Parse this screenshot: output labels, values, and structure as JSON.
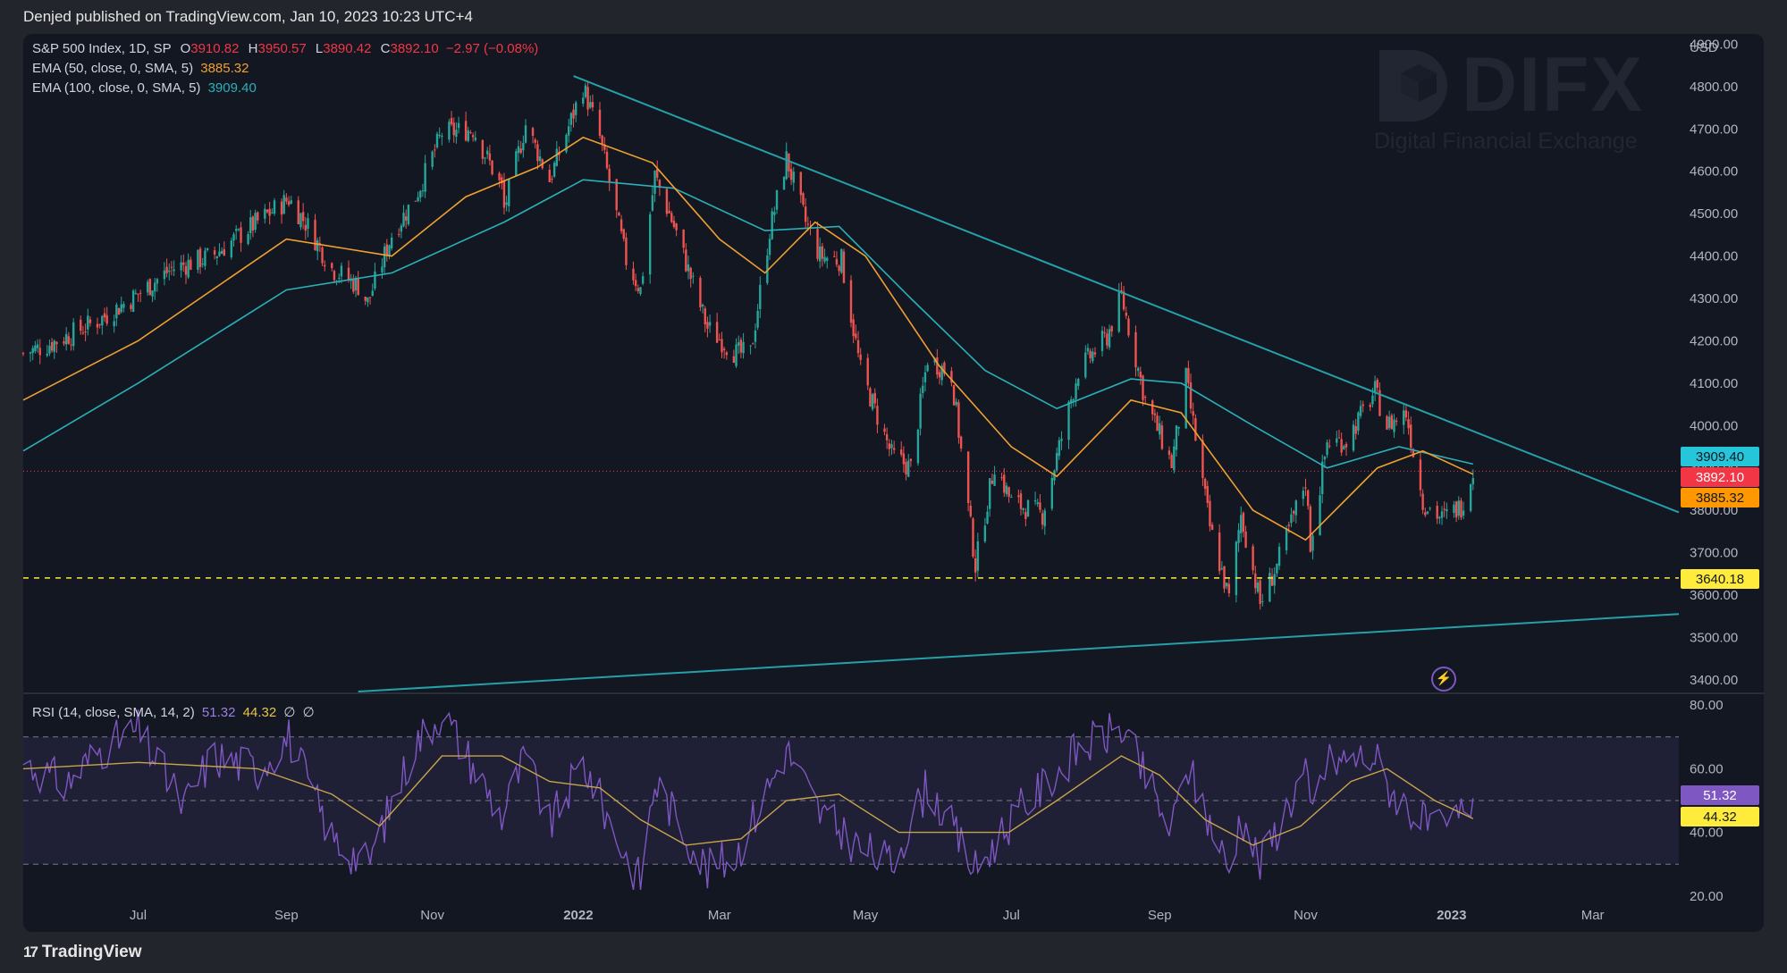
{
  "publisher": "Denjed published on TradingView.com, Jan 10, 2023 10:23 UTC+4",
  "footer": {
    "brand": "TradingView",
    "logo_mark": "17"
  },
  "watermark": {
    "name": "DIFX",
    "subtitle": "Digital Financial Exchange"
  },
  "legend": {
    "symbol": "S&P 500 Index, 1D, SP",
    "ohlc": [
      {
        "label": "O",
        "value": "3910.82"
      },
      {
        "label": "H",
        "value": "3950.57"
      },
      {
        "label": "L",
        "value": "3890.42"
      },
      {
        "label": "C",
        "value": "3892.10"
      }
    ],
    "change": "−2.97 (−0.08%)",
    "ema50": {
      "label": "EMA (50, close, 0, SMA, 5)",
      "value": "3885.32"
    },
    "ema100": {
      "label": "EMA (100, close, 0, SMA, 5)",
      "value": "3909.40"
    },
    "rsi": {
      "label": "RSI (14, close, SMA, 14, 2)",
      "value": "51.32",
      "ma_value": "44.32",
      "flags": [
        "∅",
        "∅"
      ]
    }
  },
  "colors": {
    "up": "#26a69a",
    "down": "#ef5350",
    "ema50": "#f0a030",
    "ema100": "#2ab0b8",
    "trendline": "#26a0a8",
    "support": "#ffeb3b",
    "rsi": "#7e57c2",
    "rsi_ma": "#c7a54b",
    "badge_ema100": "#26c6da",
    "badge_close": "#f23645",
    "badge_ema50": "#ff9800",
    "badge_support": "#ffeb3b"
  },
  "icons": {
    "lightning": "⚡"
  },
  "chart_data": {
    "type": "candlestick",
    "price_axis": {
      "unit": "USD",
      "ticks": [
        "4900.00",
        "4800.00",
        "4700.00",
        "4600.00",
        "4500.00",
        "4400.00",
        "4300.00",
        "4200.00",
        "4100.00",
        "4000.00",
        "3900.00",
        "3800.00",
        "3700.00",
        "3600.00",
        "3500.00",
        "3400.00"
      ],
      "ylim": [
        3370,
        4920
      ]
    },
    "time_axis": {
      "ticks": [
        {
          "label": "Jul",
          "bold": false
        },
        {
          "label": "Sep",
          "bold": false
        },
        {
          "label": "Nov",
          "bold": false
        },
        {
          "label": "2022",
          "bold": true
        },
        {
          "label": "Mar",
          "bold": false
        },
        {
          "label": "May",
          "bold": false
        },
        {
          "label": "Jul",
          "bold": false
        },
        {
          "label": "Sep",
          "bold": false
        },
        {
          "label": "Nov",
          "bold": false
        },
        {
          "label": "2023",
          "bold": true
        },
        {
          "label": "Mar",
          "bold": false
        }
      ],
      "tick_dates": [
        "2021-07-01",
        "2021-09-01",
        "2021-11-01",
        "2022-01-01",
        "2022-03-01",
        "2022-05-01",
        "2022-07-01",
        "2022-09-01",
        "2022-11-01",
        "2023-01-01",
        "2023-03-01"
      ],
      "range": [
        "2021-05-14",
        "2023-04-06"
      ]
    },
    "price_path": [
      [
        "2021-05-14",
        4170
      ],
      [
        "2021-05-24",
        4190
      ],
      [
        "2021-06-01",
        4210
      ],
      [
        "2021-06-15",
        4250
      ],
      [
        "2021-07-01",
        4310
      ],
      [
        "2021-07-15",
        4370
      ],
      [
        "2021-08-01",
        4400
      ],
      [
        "2021-08-15",
        4460
      ],
      [
        "2021-09-02",
        4535
      ],
      [
        "2021-09-10",
        4470
      ],
      [
        "2021-09-20",
        4370
      ],
      [
        "2021-10-01",
        4330
      ],
      [
        "2021-10-05",
        4290
      ],
      [
        "2021-10-15",
        4450
      ],
      [
        "2021-10-25",
        4540
      ],
      [
        "2021-11-05",
        4690
      ],
      [
        "2021-11-18",
        4700
      ],
      [
        "2021-11-30",
        4560
      ],
      [
        "2021-12-01",
        4510
      ],
      [
        "2021-12-10",
        4710
      ],
      [
        "2021-12-20",
        4580
      ],
      [
        "2022-01-03",
        4800
      ],
      [
        "2022-01-10",
        4680
      ],
      [
        "2022-01-21",
        4390
      ],
      [
        "2022-01-27",
        4320
      ],
      [
        "2022-02-02",
        4590
      ],
      [
        "2022-02-10",
        4470
      ],
      [
        "2022-02-24",
        4230
      ],
      [
        "2022-03-08",
        4170
      ],
      [
        "2022-03-14",
        4170
      ],
      [
        "2022-03-22",
        4460
      ],
      [
        "2022-03-29",
        4630
      ],
      [
        "2022-04-06",
        4480
      ],
      [
        "2022-04-12",
        4400
      ],
      [
        "2022-04-21",
        4390
      ],
      [
        "2022-04-29",
        4130
      ],
      [
        "2022-05-12",
        3930
      ],
      [
        "2022-05-20",
        3900
      ],
      [
        "2022-05-27",
        4160
      ],
      [
        "2022-06-06",
        4120
      ],
      [
        "2022-06-16",
        3670
      ],
      [
        "2022-06-24",
        3910
      ],
      [
        "2022-07-01",
        3820
      ],
      [
        "2022-07-14",
        3790
      ],
      [
        "2022-07-29",
        4130
      ],
      [
        "2022-08-10",
        4210
      ],
      [
        "2022-08-16",
        4305
      ],
      [
        "2022-08-26",
        4060
      ],
      [
        "2022-09-06",
        3910
      ],
      [
        "2022-09-12",
        4110
      ],
      [
        "2022-09-22",
        3760
      ],
      [
        "2022-09-30",
        3590
      ],
      [
        "2022-10-05",
        3790
      ],
      [
        "2022-10-13",
        3580
      ],
      [
        "2022-10-20",
        3670
      ],
      [
        "2022-11-01",
        3870
      ],
      [
        "2022-11-03",
        3720
      ],
      [
        "2022-11-10",
        3960
      ],
      [
        "2022-11-18",
        3965
      ],
      [
        "2022-11-30",
        4080
      ],
      [
        "2022-12-05",
        4000
      ],
      [
        "2022-12-13",
        4030
      ],
      [
        "2022-12-20",
        3820
      ],
      [
        "2022-12-28",
        3780
      ],
      [
        "2023-01-05",
        3810
      ],
      [
        "2023-01-10",
        3892
      ]
    ],
    "ema50_path": [
      [
        "2021-05-14",
        4060
      ],
      [
        "2021-07-01",
        4200
      ],
      [
        "2021-09-01",
        4440
      ],
      [
        "2021-10-15",
        4400
      ],
      [
        "2021-11-15",
        4540
      ],
      [
        "2021-12-15",
        4610
      ],
      [
        "2022-01-03",
        4680
      ],
      [
        "2022-02-01",
        4620
      ],
      [
        "2022-03-01",
        4440
      ],
      [
        "2022-03-20",
        4360
      ],
      [
        "2022-04-10",
        4480
      ],
      [
        "2022-05-01",
        4400
      ],
      [
        "2022-06-01",
        4140
      ],
      [
        "2022-07-01",
        3950
      ],
      [
        "2022-07-20",
        3880
      ],
      [
        "2022-08-20",
        4060
      ],
      [
        "2022-09-10",
        4030
      ],
      [
        "2022-10-10",
        3800
      ],
      [
        "2022-11-01",
        3730
      ],
      [
        "2022-12-01",
        3900
      ],
      [
        "2022-12-20",
        3940
      ],
      [
        "2023-01-10",
        3885
      ]
    ],
    "ema100_path": [
      [
        "2021-05-14",
        3940
      ],
      [
        "2021-07-01",
        4100
      ],
      [
        "2021-09-01",
        4320
      ],
      [
        "2021-10-15",
        4360
      ],
      [
        "2021-12-01",
        4480
      ],
      [
        "2022-01-03",
        4580
      ],
      [
        "2022-02-10",
        4560
      ],
      [
        "2022-03-20",
        4460
      ],
      [
        "2022-04-20",
        4470
      ],
      [
        "2022-05-20",
        4300
      ],
      [
        "2022-06-20",
        4130
      ],
      [
        "2022-07-20",
        4040
      ],
      [
        "2022-08-20",
        4110
      ],
      [
        "2022-09-10",
        4100
      ],
      [
        "2022-10-10",
        4000
      ],
      [
        "2022-11-10",
        3900
      ],
      [
        "2022-12-10",
        3950
      ],
      [
        "2023-01-10",
        3909
      ]
    ],
    "trendlines": [
      {
        "name": "descending resistance",
        "from": [
          "2021-12-30",
          4825
        ],
        "to": [
          "2023-04-06",
          3795
        ]
      },
      {
        "name": "ascending support",
        "from": [
          "2021-10-01",
          3372
        ],
        "to": [
          "2023-04-06",
          3555
        ]
      }
    ],
    "horizontal_levels": [
      {
        "value": 3640.18,
        "label": "3640.18",
        "style": "dashed"
      },
      {
        "value": 3892.1,
        "label": "3892.10",
        "style": "dotted"
      }
    ],
    "price_badges": [
      {
        "label": "3909.40",
        "value": 3909.4
      },
      {
        "label": "3892.10",
        "value": 3892.1
      },
      {
        "label": "3885.32",
        "value": 3885.32
      },
      {
        "label": "3640.18",
        "value": 3640.18
      }
    ],
    "rsi": {
      "ticks": [
        "80.00",
        "60.00",
        "40.00",
        "20.00"
      ],
      "ylim": [
        18,
        82
      ],
      "bands": [
        70,
        50,
        30
      ],
      "badges": [
        {
          "label": "51.32",
          "value": 51.32
        },
        {
          "label": "44.32",
          "value": 44.32
        }
      ],
      "rsi_path": [
        [
          "2021-05-14",
          62
        ],
        [
          "2021-06-01",
          55
        ],
        [
          "2021-06-15",
          66
        ],
        [
          "2021-07-01",
          72
        ],
        [
          "2021-07-20",
          48
        ],
        [
          "2021-08-01",
          64
        ],
        [
          "2021-08-20",
          60
        ],
        [
          "2021-09-02",
          70
        ],
        [
          "2021-09-20",
          38
        ],
        [
          "2021-10-05",
          30
        ],
        [
          "2021-10-25",
          68
        ],
        [
          "2021-11-05",
          78
        ],
        [
          "2021-11-30",
          45
        ],
        [
          "2021-12-10",
          64
        ],
        [
          "2021-12-20",
          42
        ],
        [
          "2022-01-03",
          62
        ],
        [
          "2022-01-21",
          32
        ],
        [
          "2022-01-27",
          25
        ],
        [
          "2022-02-02",
          56
        ],
        [
          "2022-02-24",
          28
        ],
        [
          "2022-03-08",
          33
        ],
        [
          "2022-03-29",
          66
        ],
        [
          "2022-04-12",
          46
        ],
        [
          "2022-04-29",
          35
        ],
        [
          "2022-05-12",
          30
        ],
        [
          "2022-05-27",
          55
        ],
        [
          "2022-06-16",
          28
        ],
        [
          "2022-07-01",
          44
        ],
        [
          "2022-07-29",
          66
        ],
        [
          "2022-08-16",
          73
        ],
        [
          "2022-09-06",
          40
        ],
        [
          "2022-09-12",
          62
        ],
        [
          "2022-09-30",
          28
        ],
        [
          "2022-10-05",
          46
        ],
        [
          "2022-10-13",
          30
        ],
        [
          "2022-11-01",
          60
        ],
        [
          "2022-11-03",
          45
        ],
        [
          "2022-11-10",
          62
        ],
        [
          "2022-11-30",
          64
        ],
        [
          "2022-12-05",
          55
        ],
        [
          "2022-12-20",
          43
        ],
        [
          "2022-12-28",
          40
        ],
        [
          "2023-01-05",
          46
        ],
        [
          "2023-01-10",
          51.3
        ]
      ],
      "ma_path": [
        [
          "2021-05-14",
          60
        ],
        [
          "2021-07-01",
          62
        ],
        [
          "2021-08-20",
          60
        ],
        [
          "2021-09-20",
          52
        ],
        [
          "2021-10-10",
          42
        ],
        [
          "2021-11-05",
          64
        ],
        [
          "2021-11-30",
          64
        ],
        [
          "2021-12-20",
          56
        ],
        [
          "2022-01-10",
          54
        ],
        [
          "2022-01-27",
          44
        ],
        [
          "2022-02-15",
          36
        ],
        [
          "2022-03-10",
          38
        ],
        [
          "2022-03-29",
          50
        ],
        [
          "2022-04-20",
          52
        ],
        [
          "2022-05-15",
          40
        ],
        [
          "2022-06-10",
          40
        ],
        [
          "2022-06-30",
          40
        ],
        [
          "2022-07-20",
          50
        ],
        [
          "2022-08-16",
          64
        ],
        [
          "2022-09-01",
          58
        ],
        [
          "2022-09-20",
          44
        ],
        [
          "2022-10-10",
          36
        ],
        [
          "2022-10-30",
          42
        ],
        [
          "2022-11-20",
          56
        ],
        [
          "2022-12-05",
          60
        ],
        [
          "2022-12-25",
          50
        ],
        [
          "2023-01-10",
          44.3
        ]
      ]
    }
  }
}
